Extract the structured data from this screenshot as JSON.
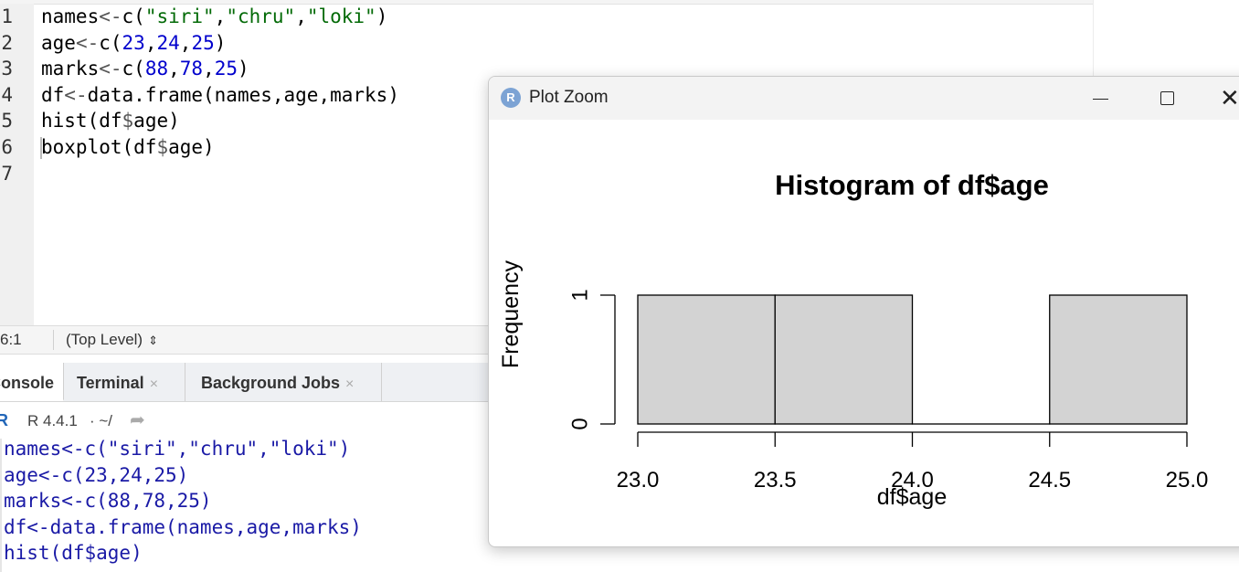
{
  "editor": {
    "line_numbers": [
      "1",
      "2",
      "3",
      "4",
      "5",
      "6",
      "7"
    ],
    "lines": [
      [
        {
          "t": "names",
          "c": ""
        },
        {
          "t": "<-",
          "c": "op"
        },
        {
          "t": "c(",
          "c": ""
        },
        {
          "t": "\"siri\"",
          "c": "str"
        },
        {
          "t": ",",
          "c": ""
        },
        {
          "t": "\"chru\"",
          "c": "str"
        },
        {
          "t": ",",
          "c": ""
        },
        {
          "t": "\"loki\"",
          "c": "str"
        },
        {
          "t": ")",
          "c": ""
        }
      ],
      [
        {
          "t": "age",
          "c": ""
        },
        {
          "t": "<-",
          "c": "op"
        },
        {
          "t": "c(",
          "c": ""
        },
        {
          "t": "23",
          "c": "num"
        },
        {
          "t": ",",
          "c": ""
        },
        {
          "t": "24",
          "c": "num"
        },
        {
          "t": ",",
          "c": ""
        },
        {
          "t": "25",
          "c": "num"
        },
        {
          "t": ")",
          "c": ""
        }
      ],
      [
        {
          "t": "marks",
          "c": ""
        },
        {
          "t": "<-",
          "c": "op"
        },
        {
          "t": "c(",
          "c": ""
        },
        {
          "t": "88",
          "c": "num"
        },
        {
          "t": ",",
          "c": ""
        },
        {
          "t": "78",
          "c": "num"
        },
        {
          "t": ",",
          "c": ""
        },
        {
          "t": "25",
          "c": "num"
        },
        {
          "t": ")",
          "c": ""
        }
      ],
      [
        {
          "t": "df",
          "c": ""
        },
        {
          "t": "<-",
          "c": "op"
        },
        {
          "t": "data.frame(names,age,marks)",
          "c": ""
        }
      ],
      [
        {
          "t": "hist(df",
          "c": ""
        },
        {
          "t": "$",
          "c": "op"
        },
        {
          "t": "age)",
          "c": ""
        }
      ],
      [
        {
          "t": "boxplot(df",
          "c": ""
        },
        {
          "t": "$",
          "c": "op"
        },
        {
          "t": "age)",
          "c": ""
        }
      ],
      []
    ]
  },
  "statusbar": {
    "cursor_position": "6:1",
    "scope": "(Top Level)",
    "scope_arrow": "⇕"
  },
  "tabs": [
    {
      "label": "Console",
      "closable": false,
      "active": true
    },
    {
      "label": "Terminal",
      "closable": true,
      "active": false
    },
    {
      "label": "Background Jobs",
      "closable": true,
      "active": false
    }
  ],
  "tab_close_glyph": "×",
  "console": {
    "r_logo": "R",
    "r_version": "R 4.4.1",
    "path": "· ~/",
    "link_icon": "➦",
    "lines": [
      "names<-c(\"siri\",\"chru\",\"loki\")",
      "age<-c(23,24,25)",
      "marks<-c(88,78,25)",
      "df<-data.frame(names,age,marks)",
      "hist(df$age)"
    ]
  },
  "plot_window": {
    "icon_letter": "R",
    "title": "Plot Zoom",
    "close_glyph": "✕"
  },
  "colors": {
    "bar_fill": "#d3d3d3",
    "bar_stroke": "#000000",
    "code_string": "#036a07",
    "code_number": "#0000cd",
    "console_text": "#1a1aa6"
  },
  "chart_data": {
    "type": "bar",
    "title": "Histogram of df$age",
    "xlabel": "df$age",
    "ylabel": "Frequency",
    "bins": [
      {
        "x0": 23.0,
        "x1": 23.5,
        "count": 1
      },
      {
        "x0": 23.5,
        "x1": 24.0,
        "count": 1
      },
      {
        "x0": 24.0,
        "x1": 24.5,
        "count": 0
      },
      {
        "x0": 24.5,
        "x1": 25.0,
        "count": 1
      }
    ],
    "xlim": [
      23.0,
      25.0
    ],
    "ylim": [
      0,
      1
    ],
    "x_ticks": [
      23.0,
      23.5,
      24.0,
      24.5,
      25.0
    ],
    "x_tick_labels": [
      "23.0",
      "23.5",
      "24.0",
      "24.5",
      "25.0"
    ],
    "y_ticks": [
      0,
      1
    ],
    "y_tick_labels": [
      "0",
      "1"
    ],
    "grid": false,
    "legend": "none"
  }
}
